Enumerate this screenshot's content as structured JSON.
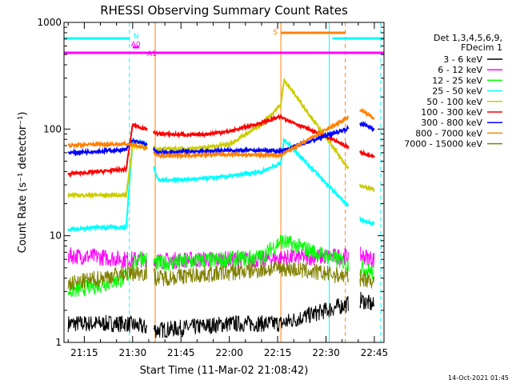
{
  "chart_data": {
    "type": "line",
    "title": "RHESSI Observing Summary Count Rates",
    "xlabel": "Start Time (11-Mar-02 21:08:42)",
    "ylabel": "Count Rate (s⁻¹ detector⁻¹)",
    "yscale": "log",
    "ylim": [
      1,
      1000
    ],
    "xlim": [
      "21:08:42",
      "22:48:00"
    ],
    "x_ticks": [
      "21:15",
      "21:30",
      "21:45",
      "22:00",
      "22:15",
      "22:30",
      "22:45"
    ],
    "y_ticks": [
      "1",
      "10",
      "100",
      "1000"
    ],
    "footer": "14-Oct-2021 01:45",
    "legend": {
      "placement": "right",
      "header": [
        "Det 1,3,4,5,6,9,",
        "FDecim 1"
      ]
    },
    "series": [
      {
        "name": "3 - 6 keV",
        "color": "#000000",
        "values": [
          {
            "t": "21:10",
            "y": 1.5
          },
          {
            "t": "21:20",
            "y": 1.5
          },
          {
            "t": "21:28",
            "y": 1.5
          },
          {
            "t": "21:38",
            "y": 1.3
          },
          {
            "t": "21:50",
            "y": 1.4
          },
          {
            "t": "22:00",
            "y": 1.5
          },
          {
            "t": "22:10",
            "y": 1.5
          },
          {
            "t": "22:16",
            "y": 1.5
          },
          {
            "t": "22:41",
            "y": 2.5
          },
          {
            "t": "22:45",
            "y": 2.2
          }
        ]
      },
      {
        "name": "6 - 12 keV",
        "color": "#ff00ff",
        "values": [
          {
            "t": "21:10",
            "y": 6.5
          },
          {
            "t": "21:20",
            "y": 6.3
          },
          {
            "t": "21:28",
            "y": 6.0
          },
          {
            "t": "21:34",
            "y": 6.0
          },
          {
            "t": "21:38",
            "y": 5.8
          },
          {
            "t": "21:50",
            "y": 6.0
          },
          {
            "t": "22:00",
            "y": 6.0
          },
          {
            "t": "22:10",
            "y": 6.0
          },
          {
            "t": "22:16",
            "y": 6.2
          },
          {
            "t": "22:41",
            "y": 6.5
          },
          {
            "t": "22:45",
            "y": 6.0
          }
        ]
      },
      {
        "name": "12 - 25 keV",
        "color": "#00ff00",
        "values": [
          {
            "t": "21:10",
            "y": 3.0
          },
          {
            "t": "21:20",
            "y": 3.5
          },
          {
            "t": "21:28",
            "y": 4.0
          },
          {
            "t": "21:32",
            "y": 6.5
          },
          {
            "t": "21:34",
            "y": 6.0
          },
          {
            "t": "21:38",
            "y": 5.5
          },
          {
            "t": "21:50",
            "y": 5.8
          },
          {
            "t": "22:00",
            "y": 6.0
          },
          {
            "t": "22:10",
            "y": 6.3
          },
          {
            "t": "22:16",
            "y": 9.0
          },
          {
            "t": "22:41",
            "y": 5.0
          },
          {
            "t": "22:45",
            "y": 4.5
          }
        ]
      },
      {
        "name": "25 - 50 keV",
        "color": "#00ffff",
        "values": [
          {
            "t": "21:10",
            "y": 11.5
          },
          {
            "t": "21:20",
            "y": 12.0
          },
          {
            "t": "21:28",
            "y": 12.0
          },
          {
            "t": "21:30",
            "y": 78
          },
          {
            "t": "21:34",
            "y": 74
          },
          {
            "t": "21:38",
            "y": 33
          },
          {
            "t": "21:50",
            "y": 34
          },
          {
            "t": "22:00",
            "y": 36
          },
          {
            "t": "22:10",
            "y": 40
          },
          {
            "t": "22:16",
            "y": 48
          },
          {
            "t": "22:17",
            "y": 80
          },
          {
            "t": "22:41",
            "y": 14
          },
          {
            "t": "22:45",
            "y": 13
          }
        ]
      },
      {
        "name": "50 - 100 keV",
        "color": "#cccc00",
        "values": [
          {
            "t": "21:10",
            "y": 24
          },
          {
            "t": "21:20",
            "y": 24
          },
          {
            "t": "21:28",
            "y": 24
          },
          {
            "t": "21:30",
            "y": 70
          },
          {
            "t": "21:34",
            "y": 68
          },
          {
            "t": "21:38",
            "y": 65
          },
          {
            "t": "21:50",
            "y": 66
          },
          {
            "t": "22:00",
            "y": 72
          },
          {
            "t": "22:10",
            "y": 110
          },
          {
            "t": "22:16",
            "y": 170
          },
          {
            "t": "22:17",
            "y": 290
          },
          {
            "t": "22:41",
            "y": 29
          },
          {
            "t": "22:45",
            "y": 27
          }
        ]
      },
      {
        "name": "100 - 300 keV",
        "color": "#ff0000",
        "values": [
          {
            "t": "21:10",
            "y": 38
          },
          {
            "t": "21:20",
            "y": 40
          },
          {
            "t": "21:28",
            "y": 42
          },
          {
            "t": "21:30",
            "y": 110
          },
          {
            "t": "21:34",
            "y": 100
          },
          {
            "t": "21:38",
            "y": 90
          },
          {
            "t": "21:50",
            "y": 88
          },
          {
            "t": "22:00",
            "y": 95
          },
          {
            "t": "22:10",
            "y": 115
          },
          {
            "t": "22:16",
            "y": 130
          },
          {
            "t": "22:41",
            "y": 60
          },
          {
            "t": "22:45",
            "y": 55
          }
        ]
      },
      {
        "name": "300 - 800 keV",
        "color": "#0000ff",
        "values": [
          {
            "t": "21:10",
            "y": 60
          },
          {
            "t": "21:20",
            "y": 62
          },
          {
            "t": "21:28",
            "y": 64
          },
          {
            "t": "21:30",
            "y": 78
          },
          {
            "t": "21:34",
            "y": 72
          },
          {
            "t": "21:38",
            "y": 60
          },
          {
            "t": "21:50",
            "y": 62
          },
          {
            "t": "22:00",
            "y": 63
          },
          {
            "t": "22:10",
            "y": 63
          },
          {
            "t": "22:16",
            "y": 62
          },
          {
            "t": "22:41",
            "y": 112
          },
          {
            "t": "22:45",
            "y": 100
          }
        ]
      },
      {
        "name": "800 - 7000 keV",
        "color": "#ff8000",
        "values": [
          {
            "t": "21:10",
            "y": 70
          },
          {
            "t": "21:20",
            "y": 72
          },
          {
            "t": "21:28",
            "y": 72
          },
          {
            "t": "21:30",
            "y": 72
          },
          {
            "t": "21:34",
            "y": 66
          },
          {
            "t": "21:38",
            "y": 56
          },
          {
            "t": "21:50",
            "y": 57
          },
          {
            "t": "22:00",
            "y": 58
          },
          {
            "t": "22:10",
            "y": 57
          },
          {
            "t": "22:16",
            "y": 57
          },
          {
            "t": "22:41",
            "y": 150
          },
          {
            "t": "22:45",
            "y": 125
          }
        ]
      },
      {
        "name": "7000 - 15000 keV",
        "color": "#808000",
        "values": [
          {
            "t": "21:10",
            "y": 3.5
          },
          {
            "t": "21:20",
            "y": 4.0
          },
          {
            "t": "21:28",
            "y": 4.5
          },
          {
            "t": "21:34",
            "y": 4.5
          },
          {
            "t": "21:38",
            "y": 4.0
          },
          {
            "t": "21:50",
            "y": 4.3
          },
          {
            "t": "22:00",
            "y": 4.5
          },
          {
            "t": "22:10",
            "y": 4.8
          },
          {
            "t": "22:16",
            "y": 5.0
          },
          {
            "t": "22:41",
            "y": 4.0
          },
          {
            "t": "22:45",
            "y": 3.8
          }
        ]
      }
    ],
    "flags": [
      {
        "label": "N",
        "color": "#00ffff",
        "segments": [
          [
            "21:08:42",
            "21:29"
          ],
          [
            "22:32",
            "22:48"
          ]
        ]
      },
      {
        "label": "A0",
        "color": "#ff00ff",
        "segments": [
          [
            "21:30",
            "21:32"
          ]
        ]
      },
      {
        "label": "A1",
        "color": "#ff00ff",
        "segments": [
          [
            "21:08:42",
            "22:48"
          ]
        ]
      },
      {
        "label": "S",
        "color": "#ff8000",
        "segments": [
          [
            "22:16",
            "22:36"
          ]
        ]
      }
    ],
    "markers": [
      {
        "t": "21:08:42",
        "color": "#00ffff",
        "style": "solid"
      },
      {
        "t": "21:29",
        "color": "#00ffff",
        "style": "dashed"
      },
      {
        "t": "21:37",
        "color": "#ff8000",
        "style": "solid"
      },
      {
        "t": "22:16",
        "color": "#ff8000",
        "style": "solid"
      },
      {
        "t": "22:31",
        "color": "#00ffff",
        "style": "solid"
      },
      {
        "t": "22:36",
        "color": "#ff8000",
        "style": "dashed"
      },
      {
        "t": "22:47",
        "color": "#00ffff",
        "style": "dashed"
      }
    ],
    "gaps": [
      [
        "21:34:30",
        "21:36:30"
      ],
      [
        "22:37",
        "22:40:30"
      ]
    ]
  }
}
